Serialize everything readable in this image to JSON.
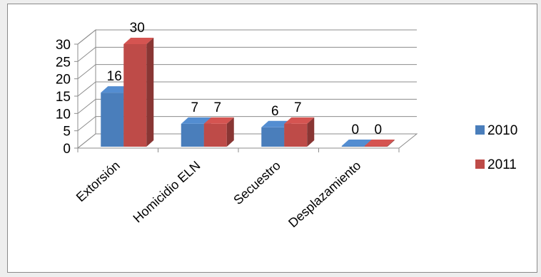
{
  "chart_data": {
    "type": "bar",
    "style": "3d-clustered-column",
    "categories": [
      "Extorsión",
      "Homicidio ELN",
      "Secuestro",
      "Desplazamiento"
    ],
    "series": [
      {
        "name": "2010",
        "values": [
          16,
          7,
          6,
          0
        ],
        "color": "#4a7ebb"
      },
      {
        "name": "2011",
        "values": [
          30,
          7,
          7,
          0
        ],
        "color": "#be4b48"
      }
    ],
    "yticks": [
      0,
      5,
      10,
      15,
      20,
      25,
      30
    ],
    "ylim": [
      0,
      30
    ],
    "grid": true,
    "legend": "right",
    "title": "",
    "xlabel": "",
    "ylabel": ""
  }
}
